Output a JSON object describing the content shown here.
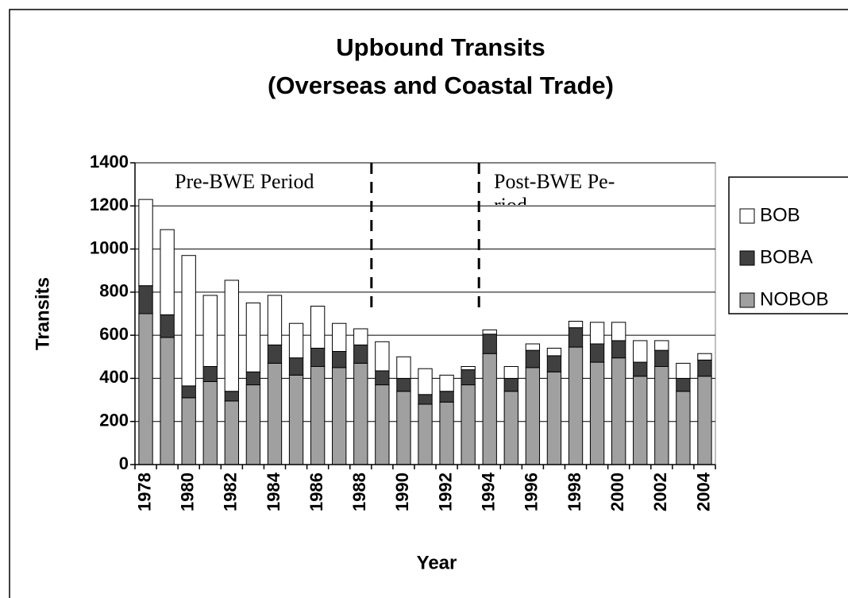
{
  "chart_data": {
    "type": "stacked_bar",
    "title": [
      "Upbound Transits",
      "(Overseas and Coastal Trade)"
    ],
    "x_label": "Year",
    "y_label": "Transits",
    "annotations": [
      [
        "Pre-BWE Period"
      ],
      [
        "Post-BWE Pe-",
        "riod"
      ]
    ],
    "categories": [
      "1978",
      null,
      "1980",
      null,
      "1982",
      null,
      "1984",
      null,
      "1986",
      null,
      "1988",
      null,
      "1990",
      null,
      "1992",
      null,
      "1994",
      null,
      "1996",
      null,
      "1998",
      null,
      "2000",
      null,
      "2002",
      null,
      "2004"
    ],
    "series": [
      {
        "name": "NOBOB",
        "color": "#a0a0a0",
        "values": [
          700,
          590,
          310,
          385,
          295,
          370,
          470,
          415,
          455,
          450,
          470,
          370,
          340,
          280,
          290,
          370,
          515,
          340,
          450,
          430,
          545,
          475,
          495,
          410,
          455,
          340,
          410
        ]
      },
      {
        "name": "BOBA",
        "color": "#404040",
        "values": [
          130,
          105,
          55,
          70,
          45,
          60,
          85,
          80,
          85,
          75,
          85,
          65,
          60,
          45,
          50,
          70,
          90,
          60,
          80,
          75,
          90,
          85,
          80,
          65,
          75,
          60,
          75
        ]
      },
      {
        "name": "BOB",
        "color": "#ffffff",
        "values": [
          400,
          395,
          605,
          330,
          515,
          320,
          230,
          160,
          195,
          130,
          75,
          135,
          100,
          120,
          75,
          15,
          20,
          55,
          30,
          35,
          30,
          100,
          85,
          100,
          45,
          70,
          30
        ]
      }
    ],
    "ylim": [
      0,
      1400
    ],
    "yticks": [
      0,
      200,
      400,
      600,
      800,
      1000,
      1200,
      1400
    ],
    "grid": true,
    "legend": "right"
  }
}
